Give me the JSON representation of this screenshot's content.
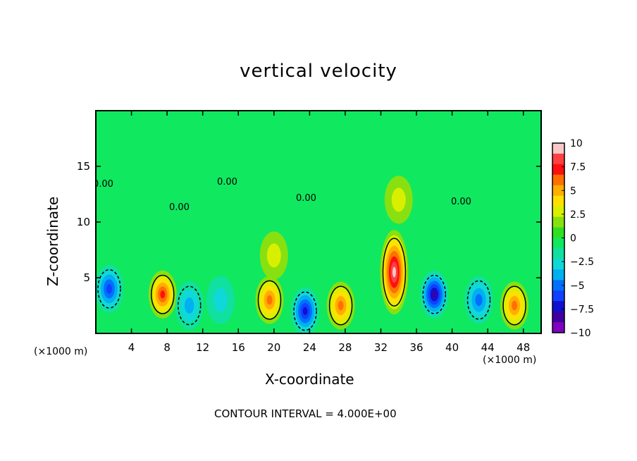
{
  "chart_data": {
    "type": "heatmap",
    "title": "vertical velocity",
    "xlabel": "X-coordinate",
    "ylabel": "Z-coordinate",
    "x_unit_label": "(×1000 m)",
    "x_range": [
      0,
      50
    ],
    "y_range": [
      0,
      20
    ],
    "x_ticks": [
      4,
      8,
      12,
      16,
      20,
      24,
      28,
      32,
      36,
      40,
      44,
      48
    ],
    "y_ticks": [
      5,
      10,
      15
    ],
    "contour_labels": [
      "0.00",
      "0.00",
      "0.00",
      "0.00",
      "0.00"
    ],
    "contour_interval_text": "CONTOUR INTERVAL = 4.000E+00",
    "colorbar": {
      "range": [
        -10,
        10
      ],
      "ticks": [
        "10",
        "7.5",
        "5",
        "2.5",
        "0",
        "−2.5",
        "−5",
        "−7.5",
        "−10"
      ],
      "colors": [
        "#f8c8c8",
        "#ff4040",
        "#ff1010",
        "#ff7000",
        "#ffae00",
        "#ffe000",
        "#d8f000",
        "#88e010",
        "#2fe020",
        "#10e860",
        "#10e0a0",
        "#10d8d8",
        "#00b0f0",
        "#0070ff",
        "#1040ff",
        "#1010d0",
        "#4000a0",
        "#8000c0"
      ]
    },
    "features": [
      {
        "x": 1.5,
        "z": 4.0,
        "w": -6
      },
      {
        "x": 7.5,
        "z": 3.5,
        "w": 7
      },
      {
        "x": 10.5,
        "z": 2.5,
        "w": -4
      },
      {
        "x": 14.0,
        "z": 3.0,
        "w": -3
      },
      {
        "x": 19.5,
        "z": 3.0,
        "w": 6
      },
      {
        "x": 23.5,
        "z": 2.0,
        "w": -8
      },
      {
        "x": 27.5,
        "z": 2.5,
        "w": 6
      },
      {
        "x": 33.5,
        "z": 5.5,
        "w": 10
      },
      {
        "x": 38.0,
        "z": 3.5,
        "w": -9
      },
      {
        "x": 43.0,
        "z": 3.0,
        "w": -5
      },
      {
        "x": 47.0,
        "z": 2.5,
        "w": 6
      },
      {
        "x": 20.0,
        "z": 7.0,
        "w": 2
      },
      {
        "x": 34.0,
        "z": 12.0,
        "w": 2
      }
    ]
  }
}
